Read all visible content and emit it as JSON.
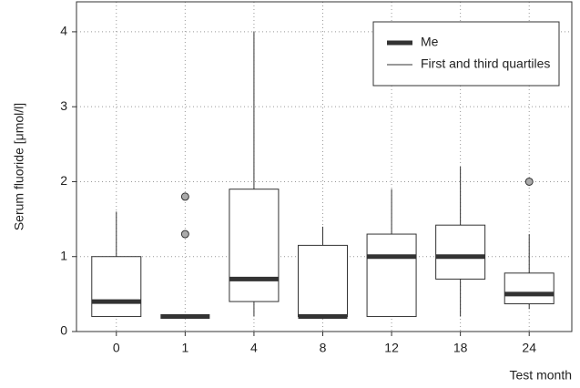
{
  "chart_data": {
    "type": "box",
    "y_label": "Serum fluoride [μmol/l]",
    "x_label": "Test month",
    "categories": [
      "0",
      "1",
      "4",
      "8",
      "12",
      "18",
      "24"
    ],
    "min": [
      0.2,
      0.2,
      0.2,
      0.2,
      0.2,
      0.2,
      0.3
    ],
    "q1": [
      0.2,
      0.2,
      0.4,
      0.2,
      0.2,
      0.7,
      0.37
    ],
    "median": [
      0.4,
      0.2,
      0.7,
      0.2,
      1.0,
      1.0,
      0.5
    ],
    "q3": [
      1.0,
      0.2,
      1.9,
      1.15,
      1.3,
      1.42,
      0.78
    ],
    "max": [
      1.6,
      0.2,
      4.0,
      1.4,
      1.9,
      2.2,
      1.3
    ],
    "outliers": [
      [],
      [
        1.8,
        1.3
      ],
      [],
      [],
      [],
      [],
      [
        2.0
      ]
    ],
    "legend": [
      "Me",
      "First and third quartiles"
    ],
    "ylim": [
      0,
      4.4
    ],
    "yticks": [
      0,
      1,
      2,
      3,
      4
    ],
    "grid": true,
    "legend_position": "upper right"
  }
}
